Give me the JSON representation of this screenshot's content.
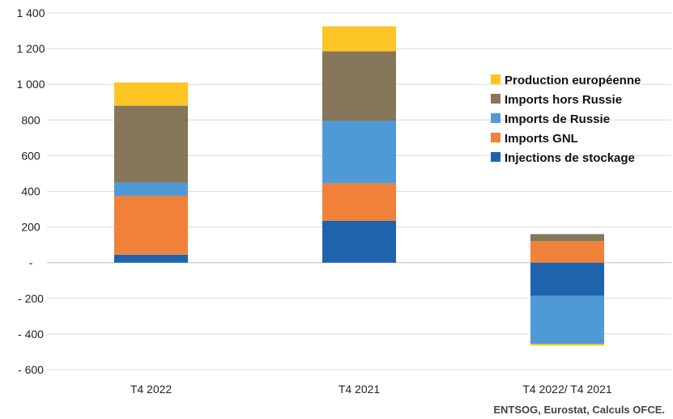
{
  "chart_data": {
    "type": "bar",
    "stacked": true,
    "categories": [
      "T4 2022",
      "T4 2021",
      "T4 2022/ T4 2021"
    ],
    "series": [
      {
        "name": "Injections de stockage",
        "color": "#1f63ad",
        "values": [
          45,
          235,
          -185
        ]
      },
      {
        "name": "Imports GNL",
        "color": "#f0813a",
        "values": [
          330,
          210,
          120
        ]
      },
      {
        "name": "Imports de Russie",
        "color": "#4f9ad6",
        "values": [
          75,
          350,
          -270
        ]
      },
      {
        "name": "Imports hors Russie",
        "color": "#86775a",
        "values": [
          430,
          390,
          40
        ]
      },
      {
        "name": "Production européenne",
        "color": "#fcc526",
        "values": [
          130,
          140,
          -10
        ]
      }
    ],
    "legend_order": [
      4,
      3,
      2,
      1,
      0
    ],
    "yticks": [
      "1 400",
      "1 200",
      "1 000",
      "800",
      "600",
      "400",
      "200",
      "-",
      "- 200",
      "- 400",
      "- 600"
    ],
    "ytick_values": [
      1400,
      1200,
      1000,
      800,
      600,
      400,
      200,
      0,
      -200,
      -400,
      -600
    ],
    "ylim": [
      -600,
      1400
    ],
    "grid": true,
    "legend_position": "right",
    "source": "ENTSOG, Eurostat, Calculs OFCE."
  }
}
